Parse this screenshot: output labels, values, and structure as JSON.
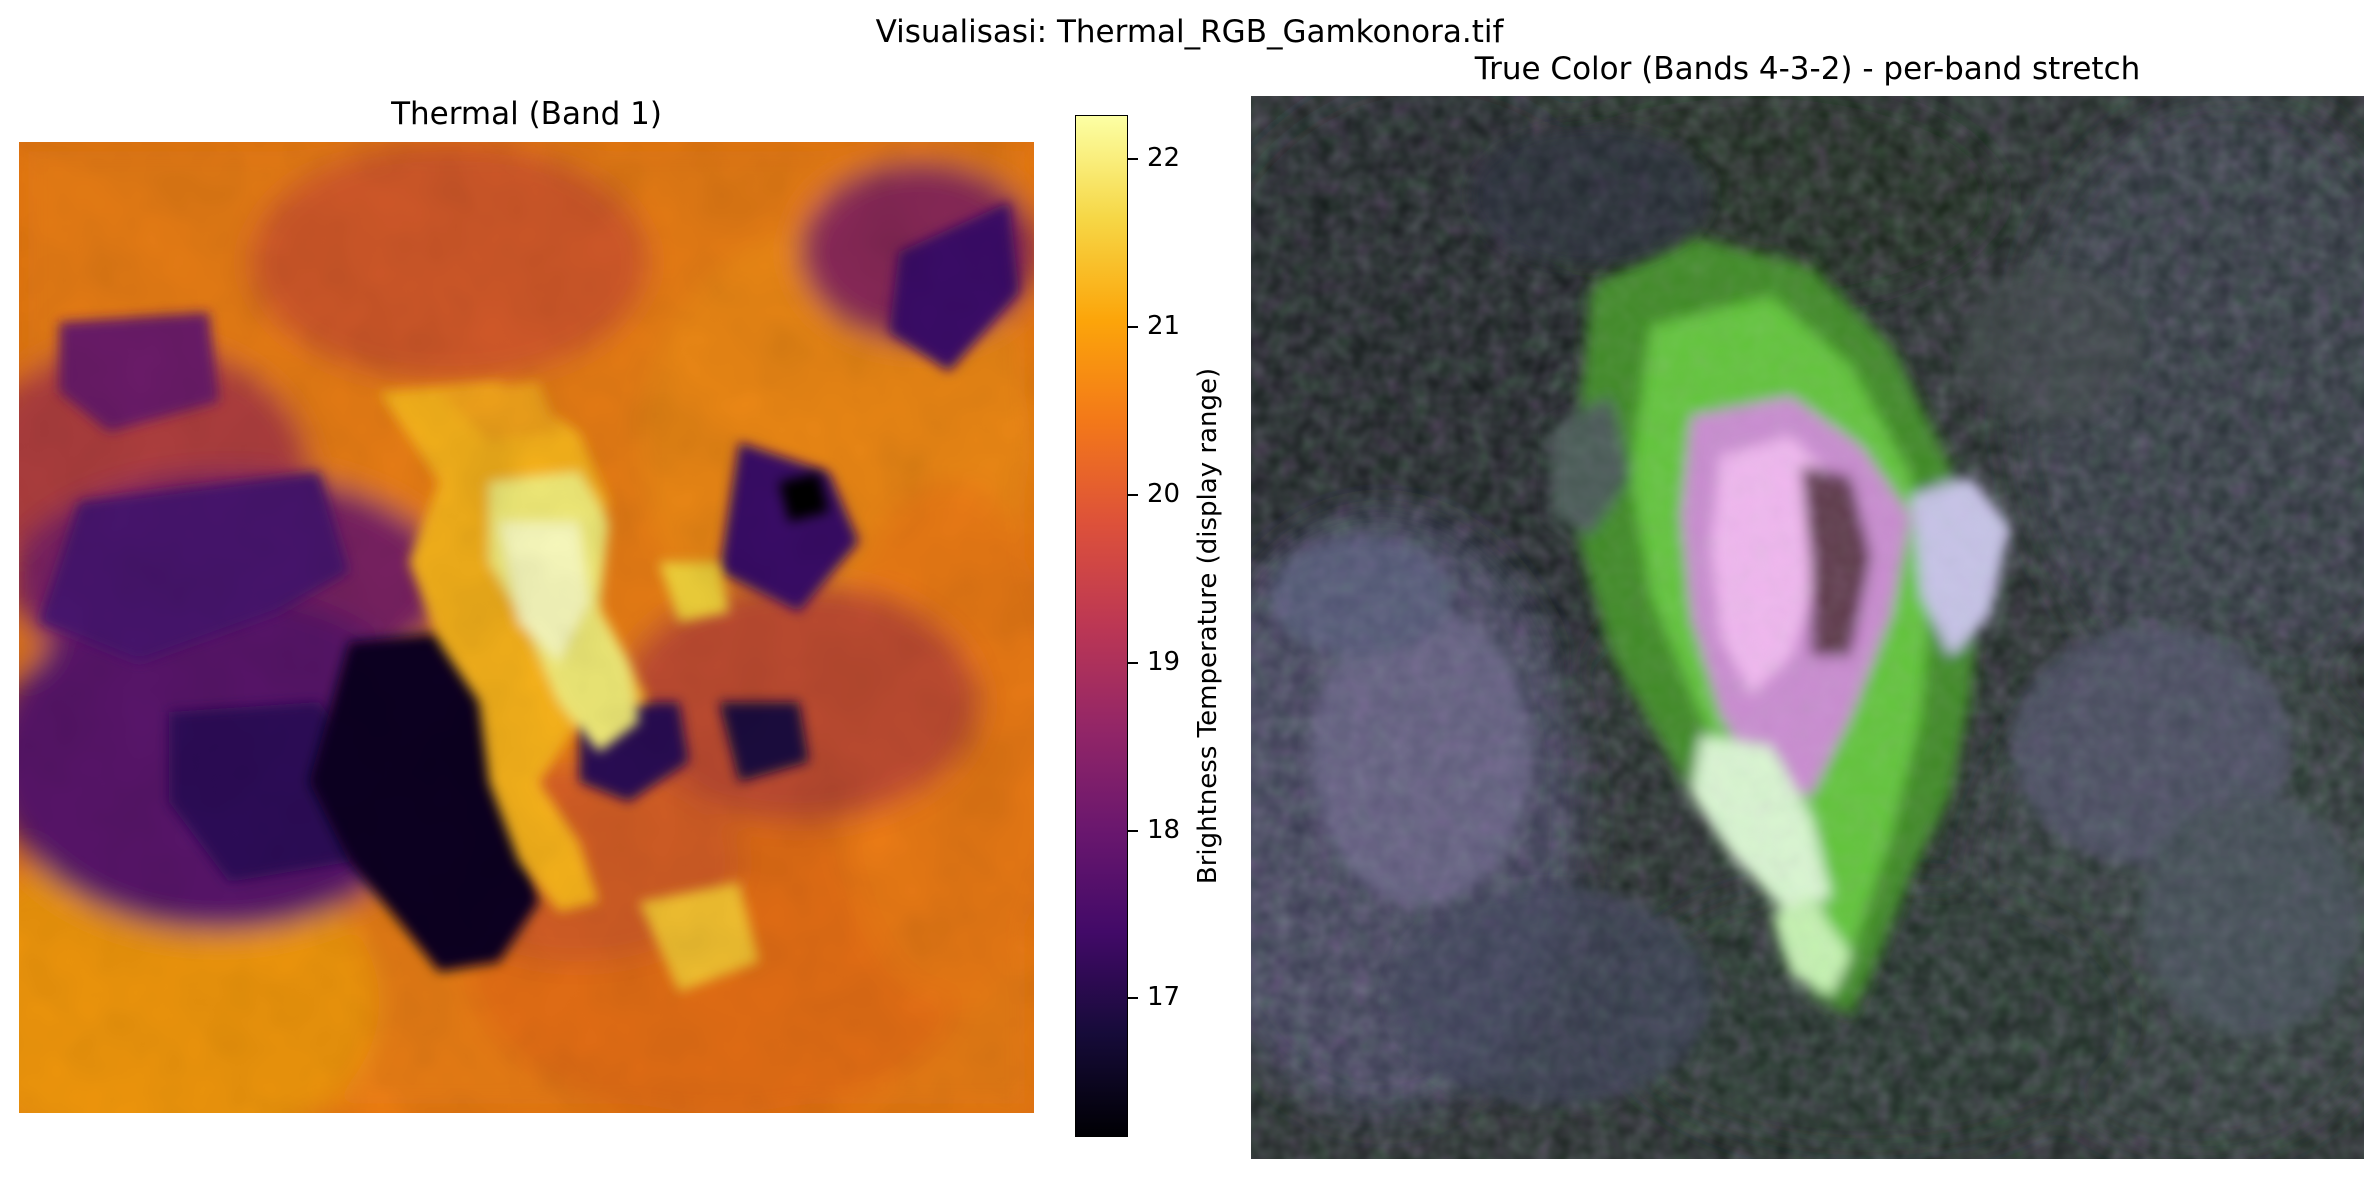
{
  "figure": {
    "suptitle": "Visualisasi: Thermal_RGB_Gamkonora.tif"
  },
  "thermal_panel": {
    "title": "Thermal (Band 1)",
    "colormap": "inferno",
    "colorbar": {
      "label": "Brightness Temperature (display range)",
      "range": [
        16.1,
        22.25
      ],
      "ticks": [
        {
          "value": 17,
          "label": "17"
        },
        {
          "value": 18,
          "label": "18"
        },
        {
          "value": 19,
          "label": "19"
        },
        {
          "value": 20,
          "label": "20"
        },
        {
          "value": 21,
          "label": "21"
        },
        {
          "value": 22,
          "label": "22"
        }
      ]
    }
  },
  "rgb_panel": {
    "title": "True Color (Bands 4-3-2) - per-band stretch"
  },
  "chart_data": [
    {
      "type": "heatmap",
      "title": "Thermal (Band 1)",
      "colormap": "inferno",
      "value_range": [
        16.1,
        22.25
      ],
      "colorbar_label": "Brightness Temperature (display range)",
      "colorbar_ticks": [
        17,
        18,
        19,
        20,
        21,
        22
      ],
      "axes_visible": false
    },
    {
      "type": "heatmap",
      "title": "True Color (Bands 4-3-2) - per-band stretch",
      "colormap": "RGB composite",
      "axes_visible": false
    }
  ]
}
